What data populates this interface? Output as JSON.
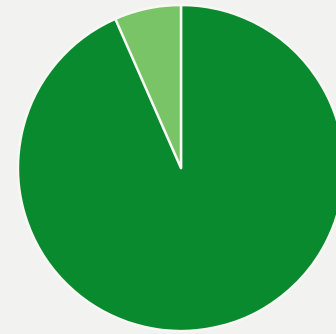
{
  "chart_data": {
    "type": "pie",
    "start_angle_deg": 0,
    "direction": "clockwise",
    "slices": [
      {
        "value": 93.4,
        "color": "#0a8a2e"
      },
      {
        "value": 6.6,
        "color": "#79c466"
      }
    ],
    "title": "",
    "legend": "none"
  }
}
